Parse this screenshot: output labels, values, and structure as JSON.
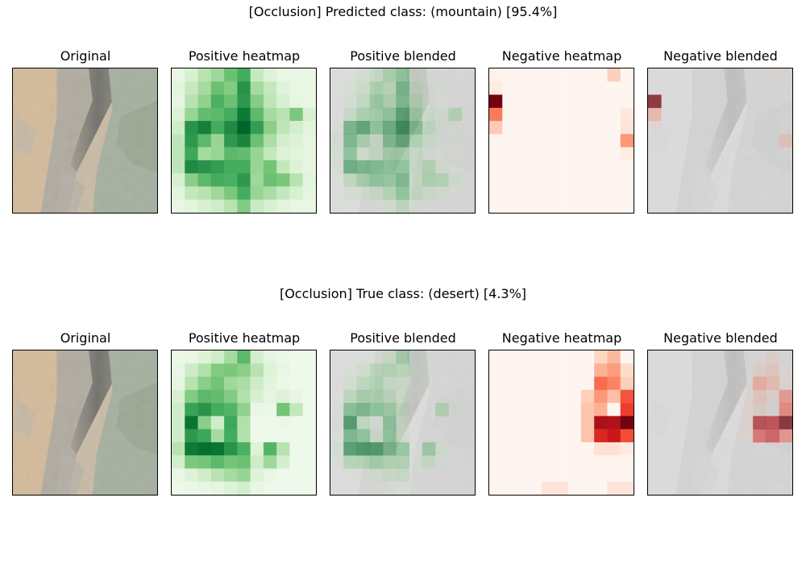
{
  "figure": {
    "rows": [
      {
        "suptitle": "[Occlusion] Predicted class: (mountain) [95.4%]",
        "panel_titles": [
          "Original",
          "Positive heatmap",
          "Positive blended",
          "Negative heatmap",
          "Negative blended"
        ]
      },
      {
        "suptitle": "[Occlusion] True class: (desert) [4.3%]",
        "panel_titles": [
          "Original",
          "Positive heatmap",
          "Positive blended",
          "Negative heatmap",
          "Negative blended"
        ]
      }
    ]
  },
  "colors": {
    "positive_map": "Greens",
    "negative_map": "Reds",
    "background": "#ffffff"
  },
  "chart_data": [
    {
      "type": "heatmap",
      "title": "[Occlusion] Predicted class: (mountain) [95.4%] — Positive heatmap",
      "grid_size": [
        11,
        11
      ],
      "values": [
        [
          0.1,
          0.18,
          0.3,
          0.38,
          0.52,
          0.62,
          0.25,
          0.16,
          0.1,
          0.1,
          0.1
        ],
        [
          0.14,
          0.25,
          0.36,
          0.52,
          0.46,
          0.72,
          0.36,
          0.26,
          0.15,
          0.1,
          0.1
        ],
        [
          0.12,
          0.3,
          0.42,
          0.6,
          0.52,
          0.7,
          0.45,
          0.28,
          0.18,
          0.12,
          0.1
        ],
        [
          0.16,
          0.4,
          0.54,
          0.56,
          0.62,
          0.82,
          0.55,
          0.36,
          0.3,
          0.48,
          0.18
        ],
        [
          0.22,
          0.72,
          0.8,
          0.62,
          0.76,
          0.9,
          0.68,
          0.44,
          0.28,
          0.2,
          0.14
        ],
        [
          0.28,
          0.7,
          0.56,
          0.4,
          0.7,
          0.78,
          0.52,
          0.34,
          0.2,
          0.16,
          0.12
        ],
        [
          0.28,
          0.64,
          0.36,
          0.4,
          0.56,
          0.54,
          0.4,
          0.26,
          0.16,
          0.14,
          0.12
        ],
        [
          0.28,
          0.76,
          0.72,
          0.68,
          0.62,
          0.62,
          0.4,
          0.5,
          0.26,
          0.16,
          0.12
        ],
        [
          0.18,
          0.44,
          0.56,
          0.62,
          0.6,
          0.7,
          0.38,
          0.52,
          0.48,
          0.3,
          0.14
        ],
        [
          0.14,
          0.26,
          0.3,
          0.38,
          0.48,
          0.62,
          0.4,
          0.34,
          0.26,
          0.18,
          0.12
        ],
        [
          0.1,
          0.14,
          0.18,
          0.22,
          0.3,
          0.46,
          0.24,
          0.18,
          0.14,
          0.1,
          0.1
        ]
      ]
    },
    {
      "type": "heatmap",
      "title": "[Occlusion] Predicted class: (mountain) [95.4%] — Negative heatmap",
      "grid_size": [
        11,
        11
      ],
      "values": [
        [
          0.02,
          0.0,
          0.0,
          0.0,
          0.0,
          0.0,
          0.0,
          0.0,
          0.0,
          0.18,
          0.0
        ],
        [
          0.06,
          0.0,
          0.0,
          0.0,
          0.0,
          0.0,
          0.0,
          0.0,
          0.0,
          0.0,
          0.0
        ],
        [
          0.98,
          0.0,
          0.0,
          0.0,
          0.0,
          0.0,
          0.0,
          0.0,
          0.0,
          0.0,
          0.0
        ],
        [
          0.45,
          0.0,
          0.0,
          0.0,
          0.0,
          0.0,
          0.0,
          0.0,
          0.0,
          0.0,
          0.08
        ],
        [
          0.2,
          0.0,
          0.0,
          0.0,
          0.0,
          0.0,
          0.0,
          0.0,
          0.0,
          0.0,
          0.1
        ],
        [
          0.0,
          0.0,
          0.0,
          0.0,
          0.0,
          0.0,
          0.0,
          0.0,
          0.0,
          0.0,
          0.36
        ],
        [
          0.0,
          0.0,
          0.0,
          0.0,
          0.0,
          0.0,
          0.0,
          0.0,
          0.0,
          0.0,
          0.06
        ],
        [
          0.0,
          0.0,
          0.0,
          0.0,
          0.0,
          0.0,
          0.0,
          0.0,
          0.0,
          0.0,
          0.0
        ],
        [
          0.0,
          0.0,
          0.0,
          0.0,
          0.0,
          0.0,
          0.0,
          0.0,
          0.0,
          0.0,
          0.0
        ],
        [
          0.0,
          0.0,
          0.0,
          0.0,
          0.0,
          0.0,
          0.0,
          0.0,
          0.0,
          0.0,
          0.0
        ],
        [
          0.0,
          0.0,
          0.0,
          0.0,
          0.0,
          0.0,
          0.0,
          0.0,
          0.0,
          0.0,
          0.0
        ]
      ]
    },
    {
      "type": "heatmap",
      "title": "[Occlusion] True class: (desert) [4.3%] — Positive heatmap",
      "grid_size": [
        11,
        11
      ],
      "values": [
        [
          0.08,
          0.1,
          0.16,
          0.22,
          0.36,
          0.56,
          0.2,
          0.12,
          0.08,
          0.06,
          0.06
        ],
        [
          0.1,
          0.22,
          0.32,
          0.46,
          0.48,
          0.44,
          0.3,
          0.16,
          0.1,
          0.06,
          0.06
        ],
        [
          0.12,
          0.3,
          0.44,
          0.5,
          0.38,
          0.34,
          0.22,
          0.14,
          0.08,
          0.06,
          0.06
        ],
        [
          0.18,
          0.46,
          0.56,
          0.54,
          0.46,
          0.32,
          0.18,
          0.12,
          0.16,
          0.1,
          0.06
        ],
        [
          0.22,
          0.66,
          0.72,
          0.62,
          0.58,
          0.42,
          0.1,
          0.08,
          0.5,
          0.26,
          0.06
        ],
        [
          0.22,
          0.84,
          0.44,
          0.22,
          0.64,
          0.32,
          0.06,
          0.06,
          0.08,
          0.06,
          0.06
        ],
        [
          0.22,
          0.7,
          0.64,
          0.36,
          0.62,
          0.32,
          0.06,
          0.06,
          0.06,
          0.06,
          0.06
        ],
        [
          0.3,
          0.82,
          0.86,
          0.84,
          0.72,
          0.6,
          0.16,
          0.58,
          0.3,
          0.06,
          0.06
        ],
        [
          0.2,
          0.48,
          0.5,
          0.56,
          0.5,
          0.52,
          0.22,
          0.38,
          0.2,
          0.06,
          0.06
        ],
        [
          0.1,
          0.16,
          0.22,
          0.3,
          0.36,
          0.4,
          0.16,
          0.1,
          0.06,
          0.06,
          0.06
        ],
        [
          0.06,
          0.08,
          0.1,
          0.12,
          0.16,
          0.2,
          0.1,
          0.06,
          0.06,
          0.06,
          0.06
        ]
      ]
    },
    {
      "type": "heatmap",
      "title": "[Occlusion] True class: (desert) [4.3%] — Negative heatmap",
      "grid_size": [
        11,
        11
      ],
      "values": [
        [
          0.0,
          0.0,
          0.0,
          0.0,
          0.0,
          0.0,
          0.0,
          0.0,
          0.16,
          0.26,
          0.0
        ],
        [
          0.0,
          0.0,
          0.0,
          0.0,
          0.0,
          0.0,
          0.0,
          0.0,
          0.28,
          0.34,
          0.14
        ],
        [
          0.0,
          0.0,
          0.0,
          0.0,
          0.0,
          0.0,
          0.0,
          0.0,
          0.5,
          0.42,
          0.18
        ],
        [
          0.0,
          0.0,
          0.0,
          0.0,
          0.0,
          0.0,
          0.0,
          0.18,
          0.36,
          0.24,
          0.56
        ],
        [
          0.0,
          0.0,
          0.0,
          0.0,
          0.0,
          0.0,
          0.0,
          0.22,
          0.28,
          0.0,
          0.62
        ],
        [
          0.0,
          0.0,
          0.0,
          0.0,
          0.0,
          0.0,
          0.0,
          0.22,
          0.86,
          0.84,
          0.98
        ],
        [
          0.0,
          0.0,
          0.0,
          0.0,
          0.0,
          0.0,
          0.0,
          0.22,
          0.7,
          0.76,
          0.58
        ],
        [
          0.0,
          0.0,
          0.0,
          0.0,
          0.0,
          0.0,
          0.0,
          0.0,
          0.12,
          0.12,
          0.06
        ],
        [
          0.0,
          0.0,
          0.0,
          0.0,
          0.0,
          0.0,
          0.0,
          0.0,
          0.0,
          0.0,
          0.0
        ],
        [
          0.0,
          0.0,
          0.0,
          0.0,
          0.0,
          0.0,
          0.0,
          0.0,
          0.0,
          0.0,
          0.0
        ],
        [
          0.0,
          0.0,
          0.0,
          0.0,
          0.1,
          0.1,
          0.0,
          0.0,
          0.0,
          0.1,
          0.1
        ]
      ]
    }
  ]
}
